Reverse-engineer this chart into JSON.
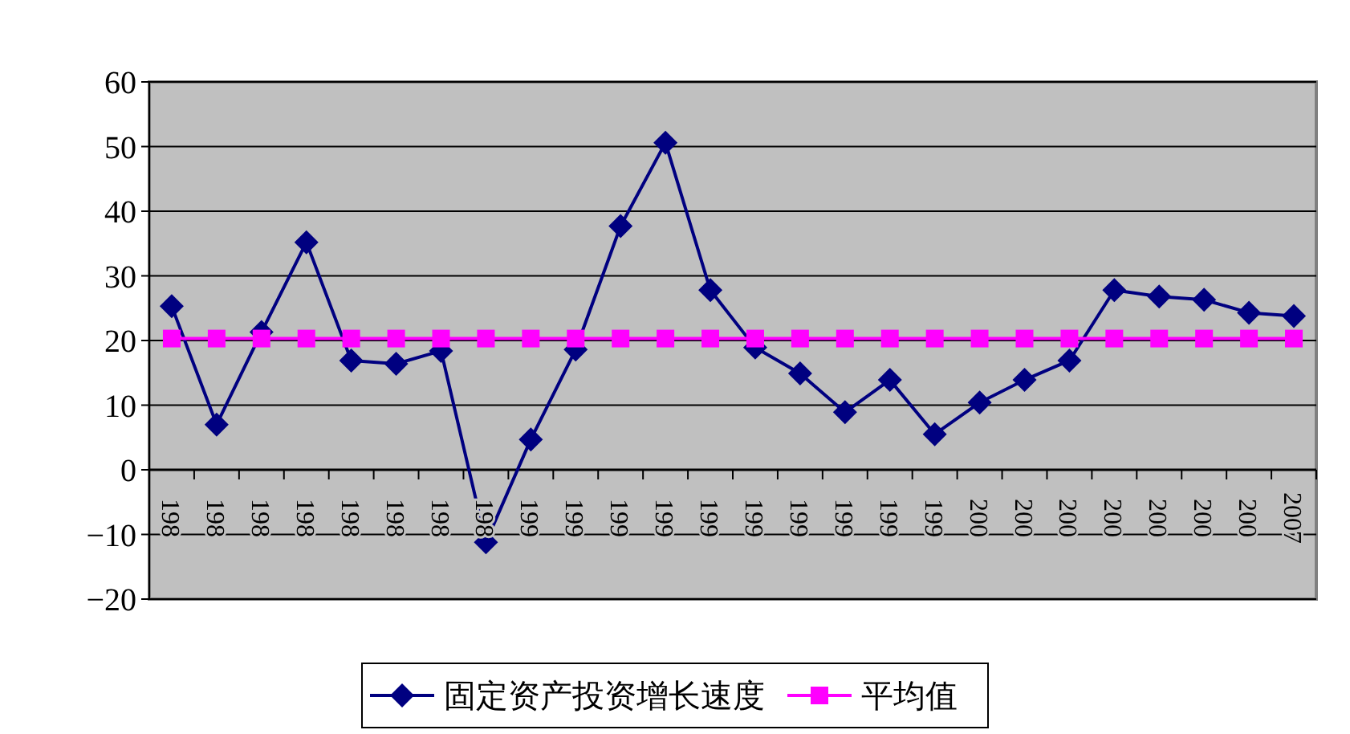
{
  "chart_data": {
    "type": "line",
    "categories": [
      "198",
      "198",
      "198",
      "198",
      "198",
      "198",
      "198",
      "198",
      "199",
      "199",
      "199",
      "199",
      "199",
      "199",
      "199",
      "199",
      "199",
      "199",
      "200",
      "200",
      "200",
      "200",
      "200",
      "200",
      "200",
      "2007"
    ],
    "series": [
      {
        "name": "固定资产投资增长速度",
        "color": "#000080",
        "marker": "diamond",
        "values": [
          25.3,
          7,
          21.3,
          35.2,
          16.9,
          16.4,
          18.4,
          -11.2,
          4.7,
          18.6,
          37.7,
          50.6,
          27.8,
          18.9,
          14.9,
          8.9,
          13.9,
          5.5,
          10.4,
          13.9,
          16.9,
          27.8,
          26.8,
          26.3,
          24.3,
          23.8
        ]
      },
      {
        "name": "平均值",
        "color": "#ff00ff",
        "marker": "square",
        "values": [
          20.3,
          20.3,
          20.3,
          20.3,
          20.3,
          20.3,
          20.3,
          20.3,
          20.3,
          20.3,
          20.3,
          20.3,
          20.3,
          20.3,
          20.3,
          20.3,
          20.3,
          20.3,
          20.3,
          20.3,
          20.3,
          20.3,
          20.3,
          20.3,
          20.3,
          20.3
        ]
      }
    ],
    "ylim": [
      -20,
      60
    ],
    "yticks": [
      -20,
      -10,
      0,
      10,
      20,
      30,
      40,
      50,
      60
    ],
    "grid": "y",
    "legend": "bottom"
  }
}
